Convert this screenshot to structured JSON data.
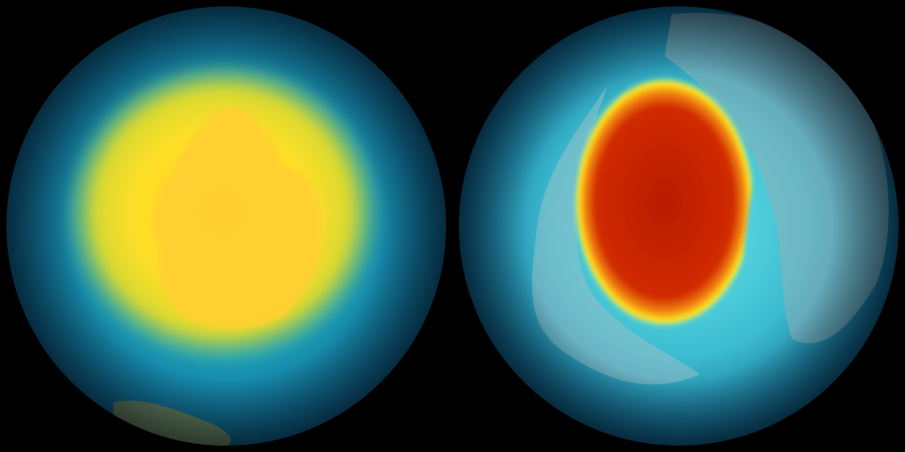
{
  "scene": {
    "background": "#000000",
    "globes": [
      {
        "id": "left-globe",
        "feature": "south-pole-view",
        "ocean": "#0d5f8a",
        "halo": "#1fb0c4",
        "core": "#ffd21f",
        "core_edge": "#f0e020"
      },
      {
        "id": "right-globe",
        "feature": "north-pole-view",
        "ocean": "#0d5f8a",
        "halo": "#5fe0e8",
        "core": "#c82000",
        "core_edge": "#ffe020"
      }
    ]
  }
}
